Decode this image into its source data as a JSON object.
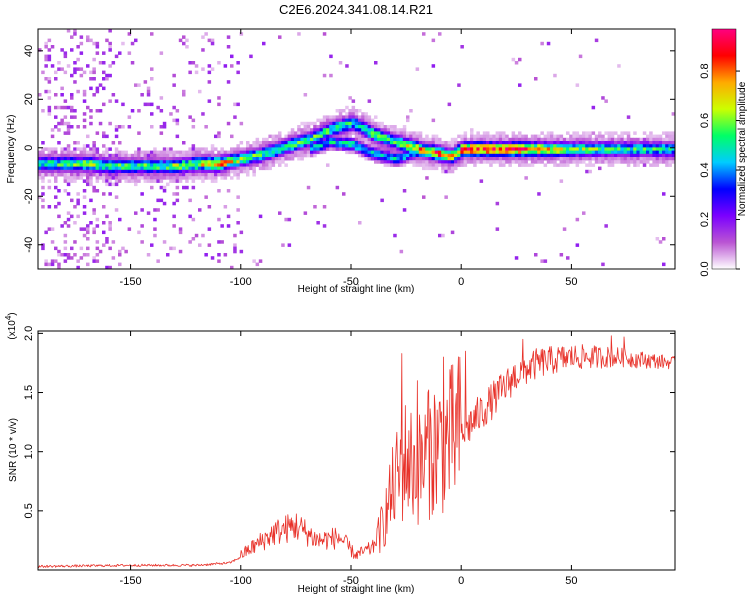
{
  "chart_data": [
    {
      "type": "heatmap",
      "title": "C2E6.2024.341.08.14.R21",
      "xlabel": "Height of straight line (km)",
      "ylabel": "Frequency (Hz)",
      "xlim": [
        -192,
        97
      ],
      "ylim": [
        -50,
        49
      ],
      "x_ticks": [
        -150,
        -100,
        -50,
        0,
        50
      ],
      "y_ticks": [
        -40,
        -20,
        0,
        20,
        40
      ],
      "grid": false,
      "colorbar": {
        "label": "Normalized spectral amplitude",
        "range": [
          0,
          0.97
        ],
        "ticks": [
          0,
          0.2,
          0.4,
          0.6,
          0.8
        ],
        "tick_labels": [
          "0.0",
          "0.2",
          "0.4",
          "0.6",
          "0.8"
        ],
        "colormap": [
          "#ffffff",
          "#ba55d3",
          "#7b00ff",
          "#0000ff",
          "#00ccff",
          "#00ff66",
          "#ccff00",
          "#ffaa00",
          "#ff0000",
          "#ff0080"
        ]
      },
      "ridge": [
        {
          "x": -192,
          "y": -6,
          "a": 0.5
        },
        {
          "x": -180,
          "y": -6,
          "a": 0.55
        },
        {
          "x": -170,
          "y": -6,
          "a": 0.6
        },
        {
          "x": -160,
          "y": -7,
          "a": 0.55
        },
        {
          "x": -150,
          "y": -7,
          "a": 0.55
        },
        {
          "x": -140,
          "y": -7,
          "a": 0.55
        },
        {
          "x": -130,
          "y": -7,
          "a": 0.6
        },
        {
          "x": -120,
          "y": -6,
          "a": 0.65
        },
        {
          "x": -110,
          "y": -6,
          "a": 0.8
        },
        {
          "x": -100,
          "y": -4,
          "a": 0.6
        },
        {
          "x": -90,
          "y": -2,
          "a": 0.55
        },
        {
          "x": -80,
          "y": 1,
          "a": 0.55
        },
        {
          "x": -70,
          "y": 4,
          "a": 0.55
        },
        {
          "x": -60,
          "y": 8,
          "a": 0.55
        },
        {
          "x": -50,
          "y": 11,
          "a": 0.5
        },
        {
          "x": -40,
          "y": 6,
          "a": 0.6
        },
        {
          "x": -30,
          "y": 3,
          "a": 0.55
        },
        {
          "x": -20,
          "y": 0,
          "a": 0.75
        },
        {
          "x": -10,
          "y": -2,
          "a": 0.85
        },
        {
          "x": -5,
          "y": -3,
          "a": 0.7
        },
        {
          "x": 0,
          "y": 0,
          "a": 0.85
        },
        {
          "x": 10,
          "y": 0,
          "a": 0.9
        },
        {
          "x": 30,
          "y": 0,
          "a": 0.85
        },
        {
          "x": 50,
          "y": 0,
          "a": 0.6
        },
        {
          "x": 70,
          "y": 0,
          "a": 0.55
        },
        {
          "x": 97,
          "y": 0,
          "a": 0.5
        }
      ],
      "secondary_ridge": [
        {
          "x": -70,
          "y": 0,
          "a": 0.5
        },
        {
          "x": -60,
          "y": 3,
          "a": 0.5
        },
        {
          "x": -50,
          "y": 2,
          "a": 0.55
        },
        {
          "x": -40,
          "y": -2,
          "a": 0.5
        },
        {
          "x": -30,
          "y": -4,
          "a": 0.5
        },
        {
          "x": -20,
          "y": -1,
          "a": 0.45
        }
      ]
    },
    {
      "type": "line",
      "xlabel": "Height of straight line (km)",
      "ylabel": "SNR (10 * v/v)",
      "y_multiplier_label": "(x10",
      "y_multiplier_exp": "4",
      "y_multiplier_close": ")",
      "xlim": [
        -192,
        97
      ],
      "ylim": [
        0,
        2.02
      ],
      "x_ticks": [
        -150,
        -100,
        -50,
        0,
        50
      ],
      "y_ticks": [
        0.5,
        1.0,
        1.5,
        2.0
      ],
      "y_tick_labels": [
        "0.5",
        "1.0",
        "1.5",
        "2.0"
      ],
      "color": "#e8322a",
      "envelope": [
        {
          "x": -192,
          "y": 0.02
        },
        {
          "x": -150,
          "y": 0.03
        },
        {
          "x": -120,
          "y": 0.03
        },
        {
          "x": -105,
          "y": 0.05
        },
        {
          "x": -95,
          "y": 0.15
        },
        {
          "x": -85,
          "y": 0.25
        },
        {
          "x": -75,
          "y": 0.3
        },
        {
          "x": -65,
          "y": 0.2
        },
        {
          "x": -55,
          "y": 0.22
        },
        {
          "x": -48,
          "y": 0.1
        },
        {
          "x": -40,
          "y": 0.15
        },
        {
          "x": -35,
          "y": 0.4
        },
        {
          "x": -30,
          "y": 0.7
        },
        {
          "x": -25,
          "y": 0.9
        },
        {
          "x": -20,
          "y": 0.8
        },
        {
          "x": -12,
          "y": 1.0
        },
        {
          "x": -5,
          "y": 1.05
        },
        {
          "x": 5,
          "y": 1.25
        },
        {
          "x": 15,
          "y": 1.45
        },
        {
          "x": 25,
          "y": 1.65
        },
        {
          "x": 35,
          "y": 1.75
        },
        {
          "x": 50,
          "y": 1.8
        },
        {
          "x": 70,
          "y": 1.8
        },
        {
          "x": 97,
          "y": 1.75
        }
      ],
      "peaks": [
        {
          "x": -27,
          "y": 1.83
        },
        {
          "x": -20,
          "y": 1.6
        },
        {
          "x": -15,
          "y": 1.5
        },
        {
          "x": -8,
          "y": 1.8
        },
        {
          "x": 2,
          "y": 1.85
        },
        {
          "x": 28,
          "y": 1.95
        },
        {
          "x": 68,
          "y": 1.98
        },
        {
          "x": 74,
          "y": 1.97
        }
      ]
    }
  ]
}
